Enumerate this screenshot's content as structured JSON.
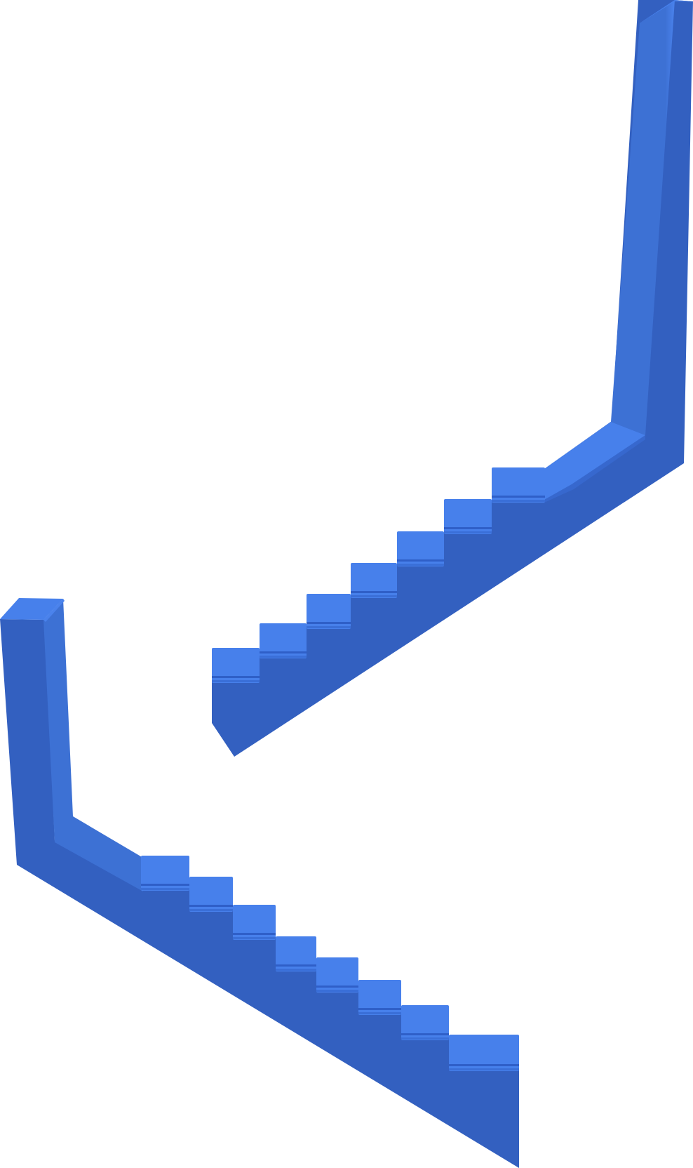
{
  "scene": {
    "description_free": true,
    "colors": {
      "background": "#ffffff",
      "body": "#3360C0",
      "body_light": "#3D71D4",
      "tread": "#4780EB",
      "tread_edge": "#3A6FD8",
      "stripe": "#2F5FC8"
    },
    "staircases": [
      {
        "id": "upper",
        "step_count": 7
      },
      {
        "id": "lower",
        "step_count": 8
      }
    ]
  }
}
